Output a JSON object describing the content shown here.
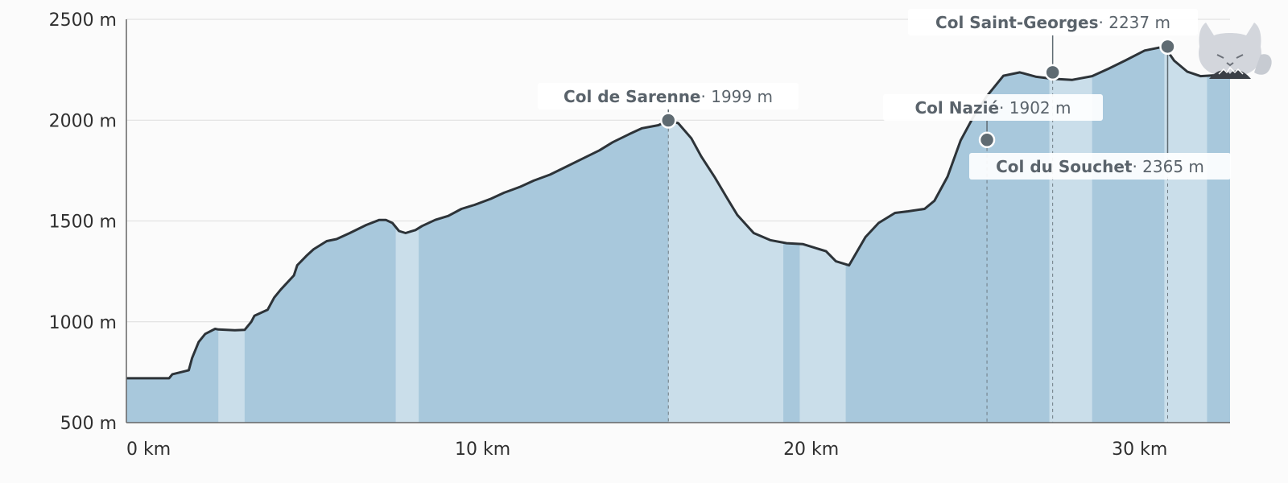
{
  "chart_data": {
    "type": "area",
    "title": "",
    "xlabel": "",
    "ylabel": "",
    "xlim": [
      0,
      33.6
    ],
    "ylim": [
      500,
      2500
    ],
    "x_unit": "km",
    "y_unit": "m",
    "grid": true,
    "x_ticks": [
      {
        "value": 0,
        "label": "0 km"
      },
      {
        "value": 10,
        "label": "10 km"
      },
      {
        "value": 20,
        "label": "20 km"
      },
      {
        "value": 30,
        "label": "30 km"
      }
    ],
    "y_ticks": [
      {
        "value": 500,
        "label": "500 m"
      },
      {
        "value": 1000,
        "label": "1000 m"
      },
      {
        "value": 1500,
        "label": "1500 m"
      },
      {
        "value": 2000,
        "label": "2000 m"
      },
      {
        "value": 2500,
        "label": "2500 m"
      }
    ],
    "series": [
      {
        "color": "#2d3338",
        "x": [
          0,
          1.3,
          1.4,
          1.9,
          2.0,
          2.2,
          2.4,
          2.7,
          2.8,
          3.3,
          3.6,
          3.8,
          3.9,
          4.3,
          4.5,
          4.7,
          5.1,
          5.2,
          5.5,
          5.7,
          6.1,
          6.4,
          6.8,
          7.3,
          7.7,
          7.9,
          8.1,
          8.3,
          8.5,
          8.8,
          9.0,
          9.4,
          9.8,
          10.2,
          10.6,
          11.1,
          11.5,
          12.0,
          12.4,
          12.9,
          13.4,
          13.9,
          14.4,
          14.8,
          15.3,
          15.7,
          16.2,
          16.5,
          16.8,
          17.2,
          17.5,
          17.9,
          18.3,
          18.6,
          19.1,
          19.6,
          20.1,
          20.6,
          20.9,
          21.3,
          21.6,
          22.0,
          22.5,
          22.9,
          23.4,
          23.8,
          24.3,
          24.6,
          25.0,
          25.4,
          25.8,
          26.2,
          26.7,
          27.2,
          27.7,
          28.2,
          28.8,
          29.4,
          29.9,
          30.4,
          31.0,
          31.6,
          31.9,
          32.3,
          32.7,
          33.1,
          33.6
        ],
        "y": [
          720,
          720,
          740,
          760,
          820,
          900,
          940,
          965,
          962,
          958,
          960,
          1000,
          1030,
          1060,
          1120,
          1160,
          1230,
          1280,
          1330,
          1360,
          1400,
          1410,
          1440,
          1480,
          1505,
          1505,
          1490,
          1450,
          1440,
          1455,
          1475,
          1505,
          1525,
          1560,
          1580,
          1610,
          1640,
          1670,
          1700,
          1730,
          1770,
          1810,
          1850,
          1890,
          1930,
          1960,
          1975,
          1999,
          1985,
          1910,
          1820,
          1720,
          1610,
          1530,
          1440,
          1405,
          1390,
          1385,
          1370,
          1350,
          1300,
          1280,
          1420,
          1490,
          1540,
          1548,
          1560,
          1600,
          1720,
          1900,
          2020,
          2120,
          2220,
          2237,
          2215,
          2205,
          2200,
          2218,
          2255,
          2295,
          2345,
          2365,
          2295,
          2240,
          2218,
          2222,
          2210
        ]
      }
    ],
    "fill_colors": {
      "dark": "#a8c8dc",
      "light": "#cadeea",
      "outline": "#2d3338",
      "marker": "#5f6b72"
    },
    "light_bands": [
      {
        "from": 2.8,
        "to": 3.6
      },
      {
        "from": 8.2,
        "to": 8.9
      },
      {
        "from": 16.5,
        "to": 20.0
      },
      {
        "from": 20.5,
        "to": 21.9
      },
      {
        "from": 28.1,
        "to": 29.4
      },
      {
        "from": 31.6,
        "to": 32.9
      }
    ],
    "annotations": [
      {
        "name": "Col de Sarenne",
        "value": "· 1999 m",
        "x": 16.5,
        "y": 1999
      },
      {
        "name": "Col Nazié",
        "value": "· 1902 m",
        "x": 26.2,
        "y": 1902
      },
      {
        "name": "Col Saint-Georges",
        "value": "· 2237 m",
        "x": 28.2,
        "y": 2237
      },
      {
        "name": "Col du Souchet",
        "value": "· 2365 m",
        "x": 31.7,
        "y": 2365
      }
    ]
  },
  "icon": {
    "name": "cat-mascot-icon",
    "color": "#d3d6dc"
  }
}
